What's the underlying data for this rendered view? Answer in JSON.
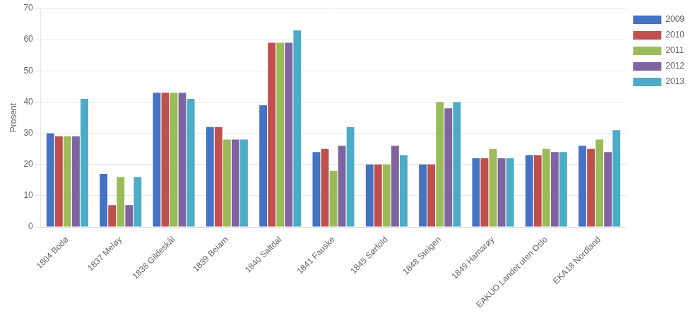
{
  "chart_data": {
    "type": "bar",
    "ylabel": "Prosent",
    "categories": [
      "1804 Bodø",
      "1837 Meløy",
      "1838 Gildeskål",
      "1839 Beiarn",
      "1840 Saltdal",
      "1841 Fauske",
      "1845 Sørfold",
      "1848 Steigen",
      "1849 Hamarøy",
      "EAKUO Landet uten Oslo",
      "EKA18 Nordland"
    ],
    "series": [
      {
        "name": "2009",
        "color": "#4472C4",
        "values": [
          30,
          17,
          43,
          32,
          39,
          24,
          20,
          20,
          22,
          23,
          26
        ]
      },
      {
        "name": "2010",
        "color": "#C0504D",
        "values": [
          29,
          7,
          43,
          32,
          59,
          25,
          20,
          20,
          22,
          23,
          25
        ]
      },
      {
        "name": "2011",
        "color": "#9BBB59",
        "values": [
          29,
          16,
          43,
          28,
          59,
          18,
          20,
          40,
          25,
          25,
          28
        ]
      },
      {
        "name": "2012",
        "color": "#8064A2",
        "values": [
          29,
          7,
          43,
          28,
          59,
          26,
          26,
          38,
          22,
          24,
          24
        ]
      },
      {
        "name": "2013",
        "color": "#4BACC6",
        "values": [
          41,
          16,
          41,
          28,
          63,
          32,
          23,
          40,
          22,
          24,
          31
        ]
      }
    ],
    "ylim": [
      0,
      70
    ],
    "yticks": [
      0,
      10,
      20,
      30,
      40,
      50,
      60,
      70
    ],
    "grid": true,
    "legend": "right"
  }
}
